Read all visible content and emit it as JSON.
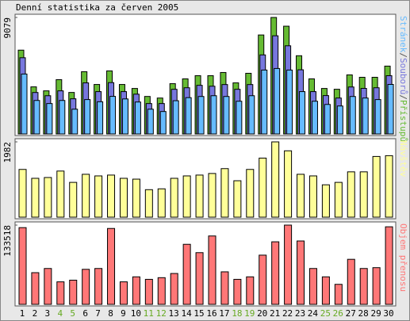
{
  "title": "Denní statistika za červen 2005",
  "chart_data": [
    {
      "type": "bar",
      "ylim": [
        0,
        9079
      ],
      "yticks": [
        9079
      ],
      "legend_separator": "/",
      "series": [
        {
          "name": "Přístupů",
          "color": "#66bb33",
          "values": [
            6531,
            3670,
            3359,
            4230,
            3234,
            4852,
            3856,
            4914,
            3856,
            3545,
            2923,
            2799,
            3918,
            4292,
            4541,
            4541,
            4789,
            3981,
            4727,
            7713,
            9079,
            8397,
            6096,
            4292,
            3545,
            3483,
            4603,
            4416,
            4416,
            5287
          ]
        },
        {
          "name": "Souborů",
          "color": "#7777dd",
          "values": [
            5940,
            3230,
            2980,
            3360,
            2740,
            3980,
            3300,
            4000,
            3300,
            3100,
            2370,
            2370,
            3480,
            3600,
            3790,
            3720,
            3850,
            3480,
            3850,
            6160,
            7650,
            6870,
            5000,
            3300,
            2990,
            2800,
            3660,
            3550,
            3600,
            4540
          ]
        },
        {
          "name": "Stránek",
          "color": "#66bbff",
          "values": [
            4670,
            2610,
            2370,
            2610,
            1930,
            2680,
            2510,
            2930,
            2730,
            2490,
            1930,
            1750,
            2590,
            2830,
            2920,
            2980,
            2920,
            2550,
            2980,
            4980,
            5100,
            4980,
            3300,
            2550,
            2300,
            2180,
            2920,
            2800,
            2680,
            3860
          ]
        }
      ]
    },
    {
      "type": "bar",
      "ylim": [
        0,
        1982
      ],
      "yticks": [
        1982
      ],
      "series": [
        {
          "name": "Návštěv",
          "color": "#ffff99",
          "values": [
            1257,
            1023,
            1044,
            1214,
            916,
            1129,
            1086,
            1108,
            1023,
            1001,
            724,
            746,
            1023,
            1086,
            1108,
            1150,
            1278,
            959,
            1257,
            1555,
            1982,
            1747,
            1129,
            1086,
            852,
            916,
            1193,
            1193,
            1598,
            1619
          ]
        }
      ]
    },
    {
      "type": "bar",
      "ylim": [
        0,
        133518
      ],
      "yticks": [
        133518
      ],
      "series": [
        {
          "name": "Objem přenosu",
          "color": "#ff7777",
          "values": [
            129260,
            53390,
            60420,
            37940,
            40750,
            59020,
            60420,
            127860,
            37940,
            46370,
            42150,
            44960,
            52000,
            101160,
            87110,
            115210,
            54800,
            42150,
            46370,
            82900,
            105380,
            133518,
            106780,
            60420,
            46370,
            33720,
            75870,
            60420,
            61820,
            130670
          ]
        }
      ],
      "categories": [
        "1",
        "2",
        "3",
        "4",
        "5",
        "6",
        "7",
        "8",
        "9",
        "10",
        "11",
        "12",
        "13",
        "14",
        "15",
        "16",
        "17",
        "18",
        "19",
        "20",
        "21",
        "22",
        "23",
        "24",
        "25",
        "26",
        "27",
        "28",
        "29",
        "30"
      ],
      "weekend": [
        false,
        false,
        false,
        true,
        true,
        false,
        false,
        false,
        false,
        false,
        true,
        true,
        false,
        false,
        false,
        false,
        false,
        true,
        true,
        false,
        false,
        false,
        false,
        false,
        true,
        true,
        false,
        false,
        false,
        false
      ],
      "weekend_color": "#66aa22"
    }
  ]
}
